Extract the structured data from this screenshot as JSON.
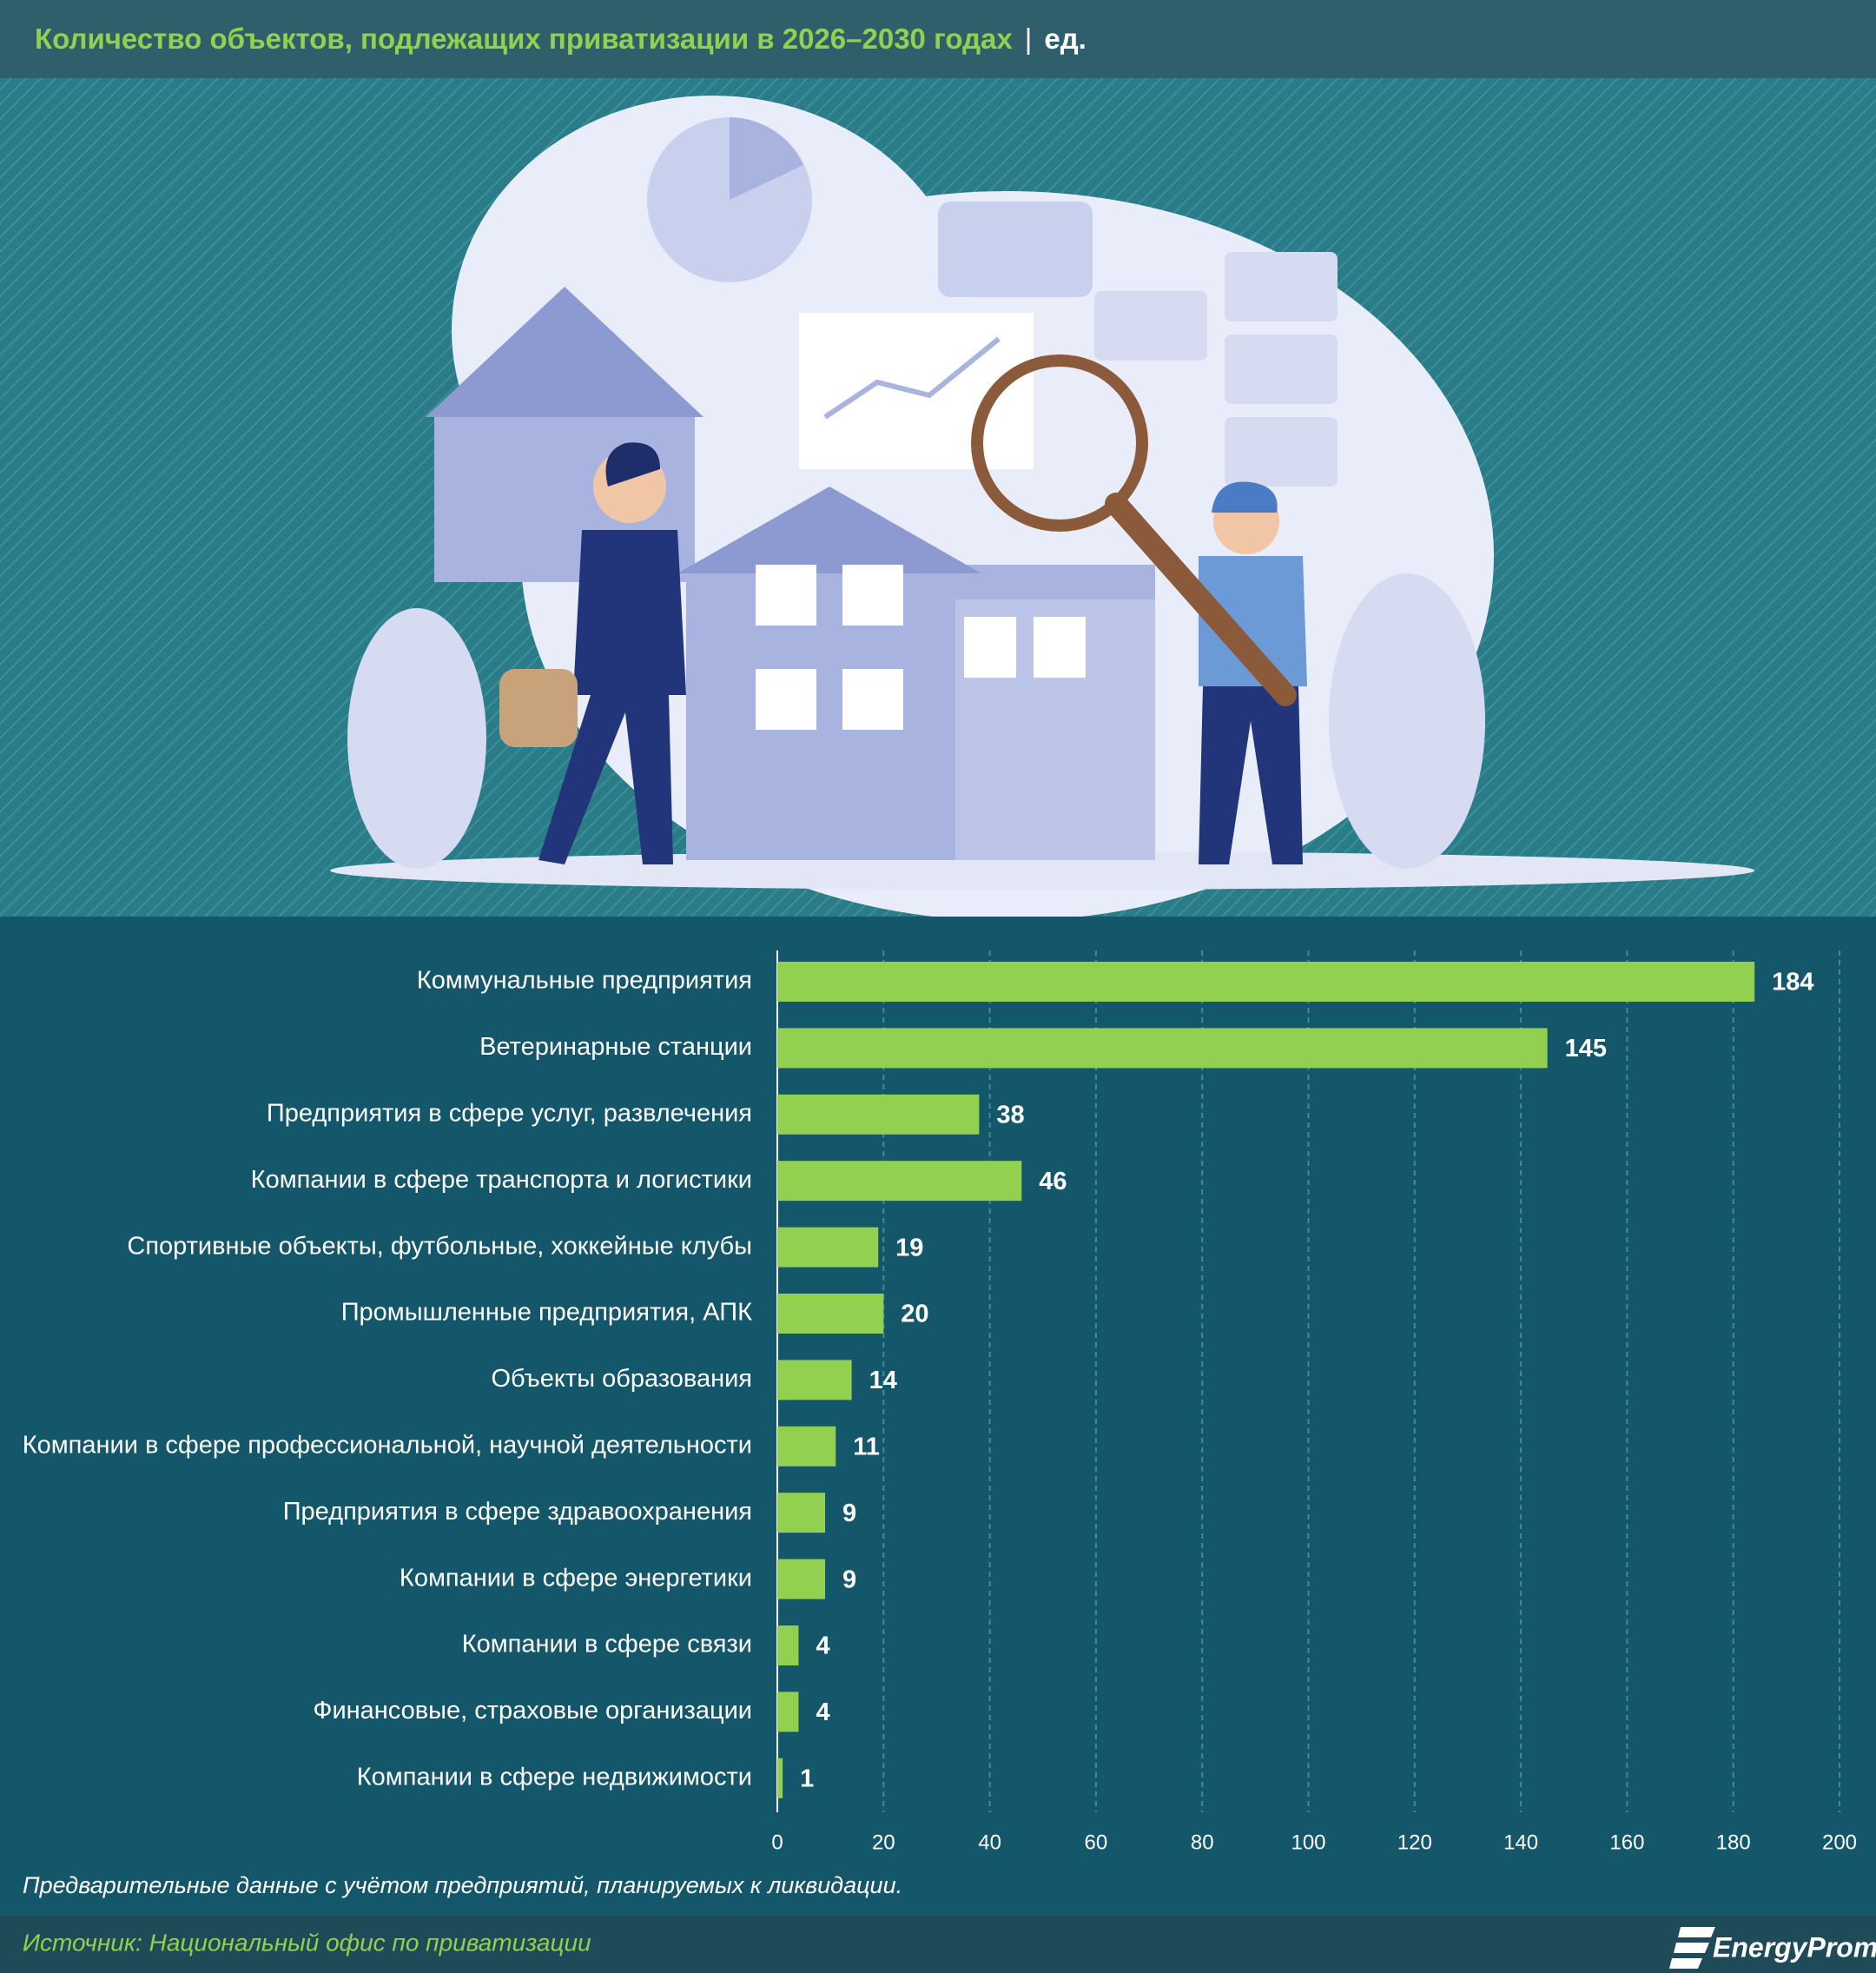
{
  "chart_data": {
    "type": "bar",
    "orientation": "horizontal",
    "title": "Количество объектов, подлежащих приватизации в 2026–2030 годах",
    "unit": "ед.",
    "categories": [
      "Коммунальные предприятия",
      "Ветеринарные станции",
      "Предприятия в сфере услуг, развлечения",
      "Компании в сфере транспорта и логистики",
      "Спортивные объекты, футбольные, хоккейные клубы",
      "Промышленные предприятия, АПК",
      "Объекты образования",
      "Компании в сфере профессиональной, научной деятельности",
      "Предприятия в сфере здравоохранения",
      "Компании в сфере энергетики",
      "Компании в сфере связи",
      "Финансовые, страховые организации",
      "Компании в сфере недвижимости"
    ],
    "values": [
      184,
      145,
      38,
      46,
      19,
      20,
      14,
      11,
      9,
      9,
      4,
      4,
      1
    ],
    "color": "#92d050",
    "xlim": [
      0,
      200
    ],
    "xticks": [
      0,
      20,
      40,
      60,
      80,
      100,
      120,
      140,
      160,
      180,
      200
    ],
    "grid": true,
    "note": "Предварительные данные с учётом предприятий, планируемых к ликвидации.",
    "source": "Источник: Национальный офис по приватизации",
    "logo": "EnergyProm"
  }
}
